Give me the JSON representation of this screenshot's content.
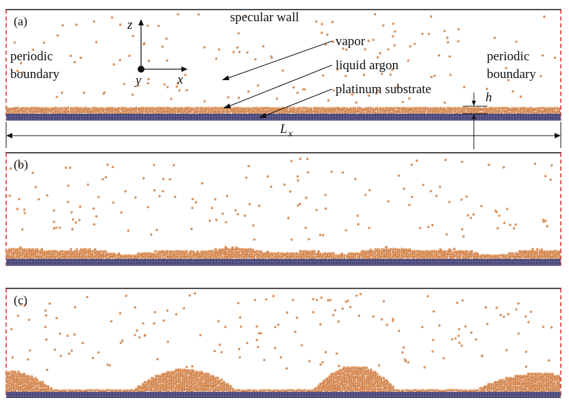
{
  "panels": [
    {
      "label": "(a)",
      "droplets": [],
      "surface_variation": "flat"
    },
    {
      "label": "(b)",
      "droplets": [],
      "surface_variation": "wavy"
    },
    {
      "label": "(c)",
      "droplets": [
        "left",
        "center-left",
        "center-right",
        "right"
      ],
      "surface_variation": "droplets"
    }
  ],
  "annotations": {
    "specular_wall": "specular wall",
    "vapor": "vapor",
    "liquid_argon": "liquid argon",
    "platinum_substrate": "platinum substrate",
    "periodic_left_1": "periodic",
    "periodic_left_2": "boundary",
    "periodic_right_1": "periodic",
    "periodic_right_2": "boundary",
    "height_symbol": "h",
    "length_symbol": "L",
    "length_subscript": "x"
  },
  "axes": {
    "z": "z",
    "x": "x",
    "y": "y"
  },
  "colors": {
    "boundary_dash": "#e0302a",
    "top_wall": "#111111",
    "substrate": "#4a4878",
    "argon": "#e0935a",
    "argon_dark": "#b86a35"
  }
}
